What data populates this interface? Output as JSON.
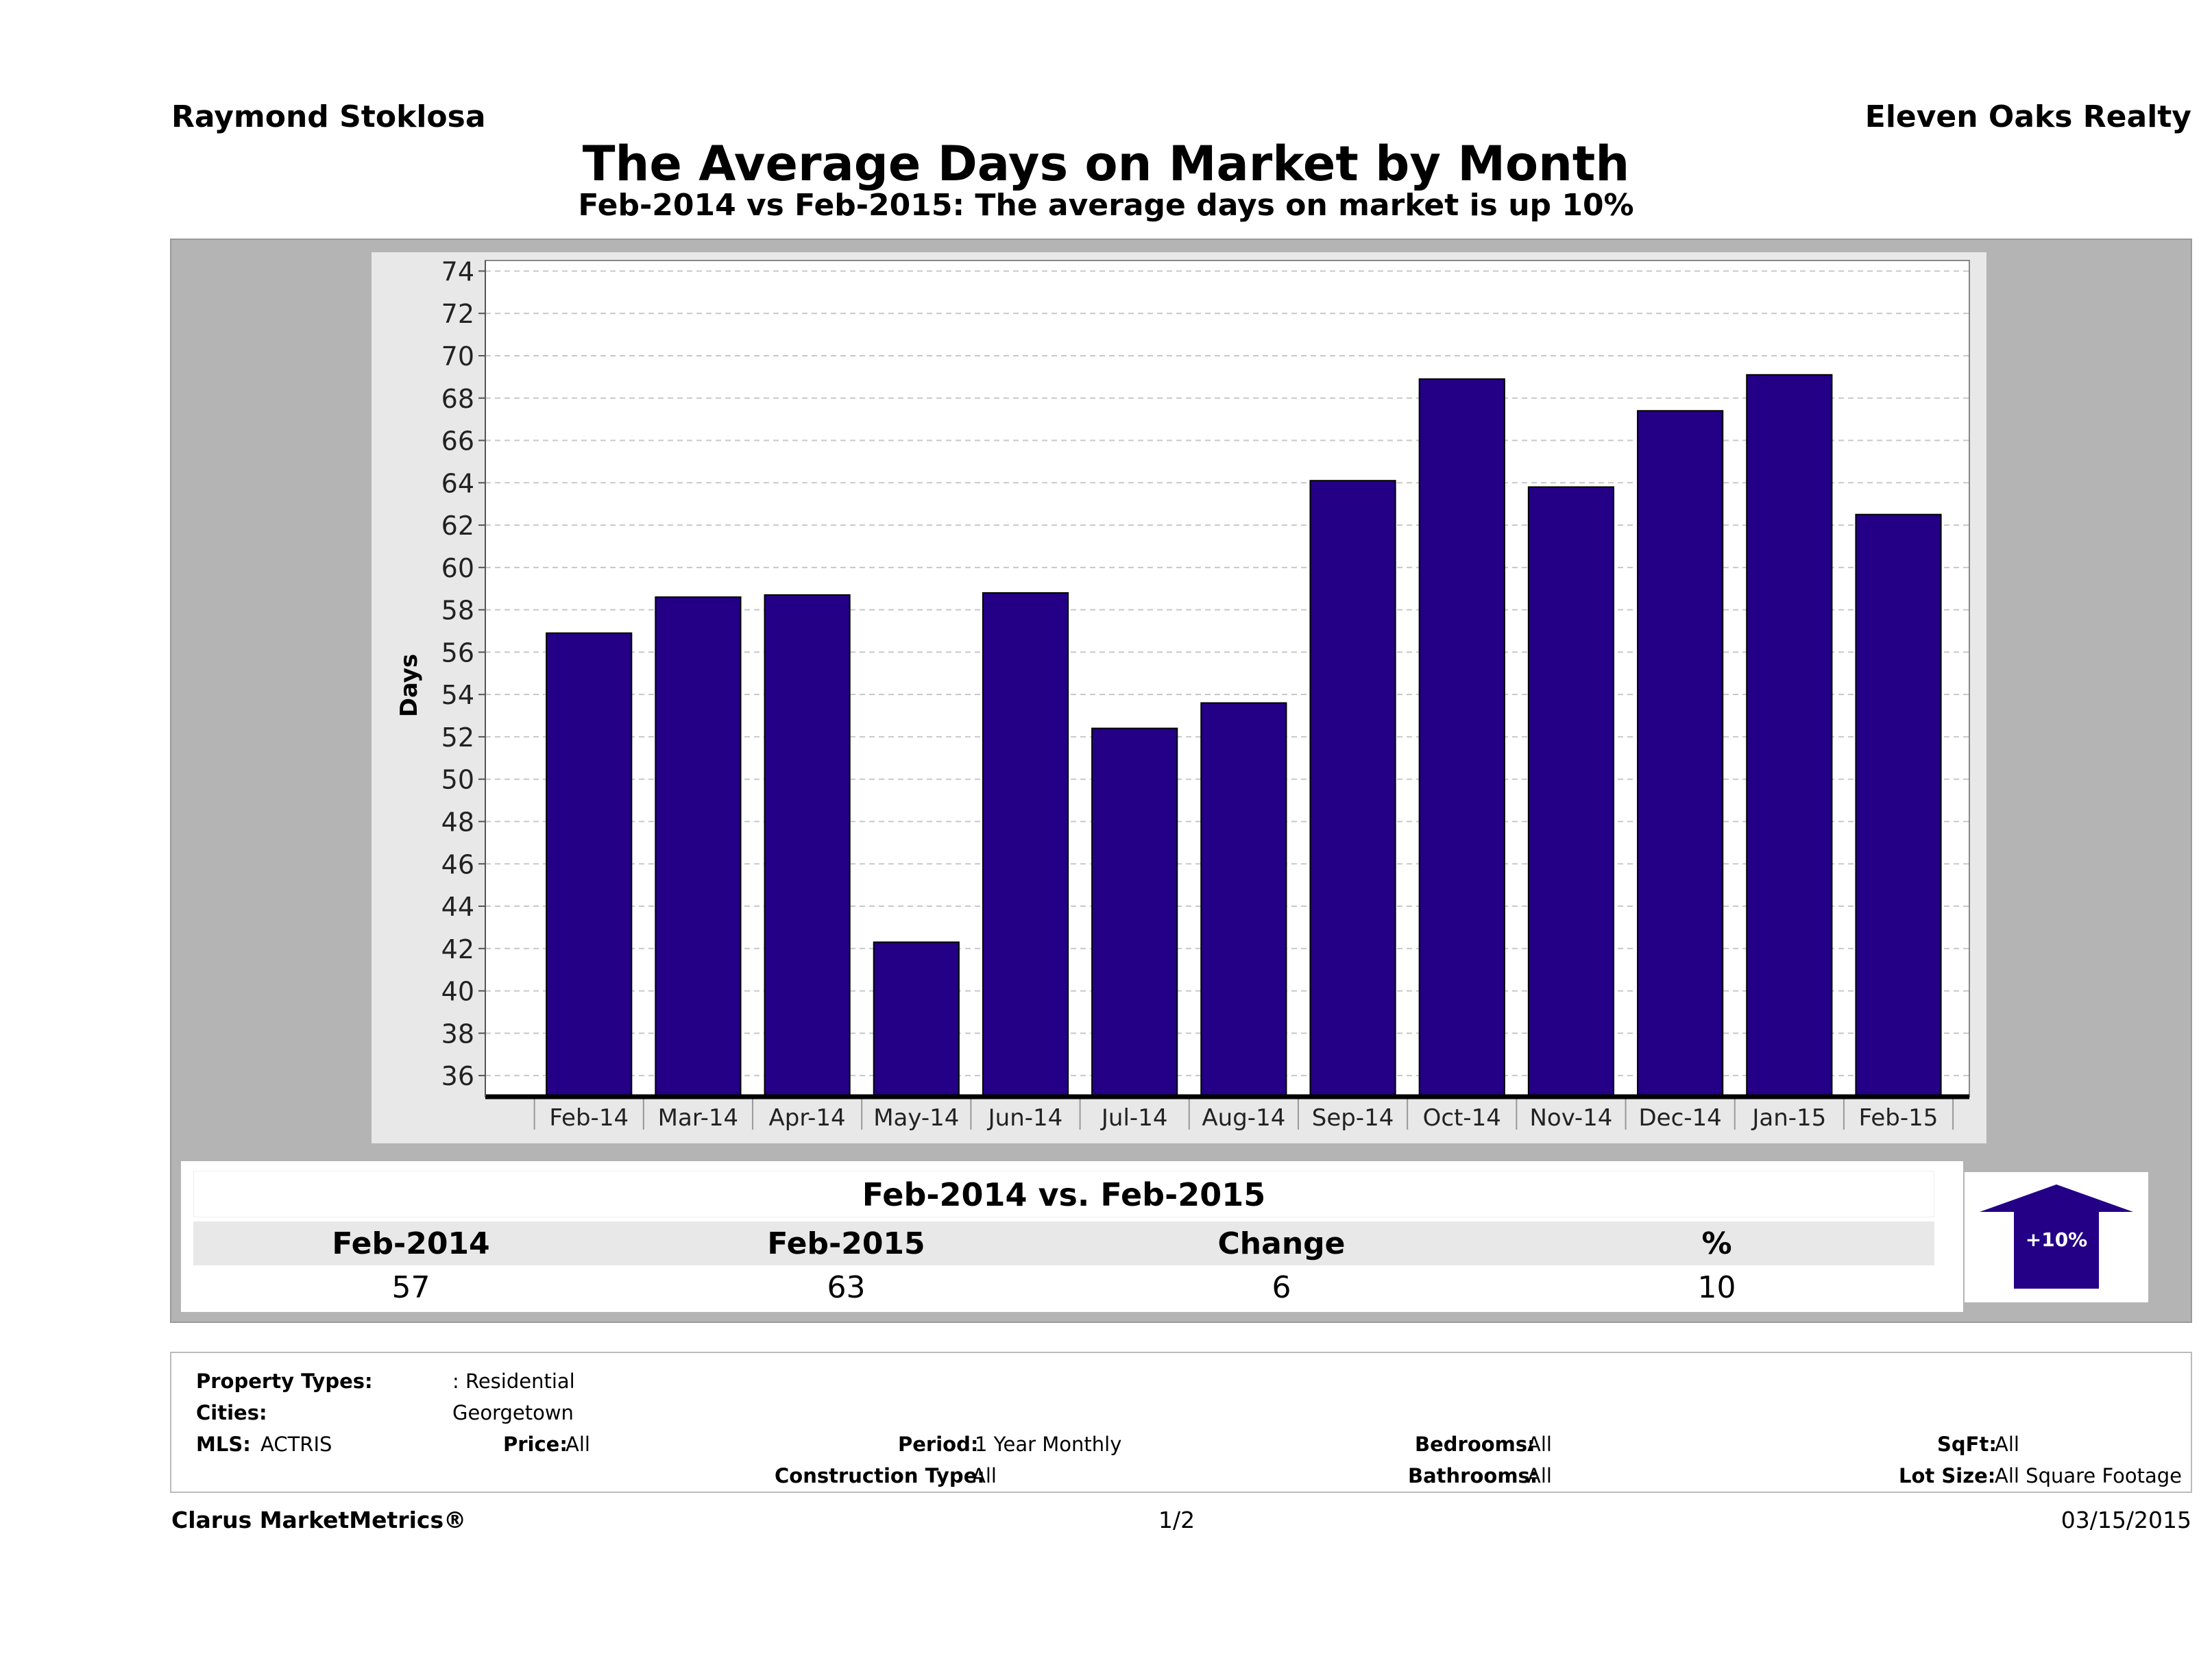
{
  "header": {
    "agent": "Raymond Stoklosa",
    "company": "Eleven Oaks Realty",
    "title": "The Average Days on Market by Month",
    "subtitle": "Feb-2014 vs Feb-2015: The average days on market is up 10%"
  },
  "chart_data": {
    "type": "bar",
    "ylabel": "Days",
    "xlabel": "",
    "ylim": [
      35,
      74.5
    ],
    "yticks": [
      36,
      38,
      40,
      42,
      44,
      46,
      48,
      50,
      52,
      54,
      56,
      58,
      60,
      62,
      64,
      66,
      68,
      70,
      72,
      74
    ],
    "grid": true,
    "categories": [
      "Feb-14",
      "Mar-14",
      "Apr-14",
      "May-14",
      "Jun-14",
      "Jul-14",
      "Aug-14",
      "Sep-14",
      "Oct-14",
      "Nov-14",
      "Dec-14",
      "Jan-15",
      "Feb-15"
    ],
    "values": [
      56.9,
      58.6,
      58.7,
      42.3,
      58.8,
      52.4,
      53.6,
      64.1,
      68.9,
      63.8,
      67.4,
      69.1,
      62.5
    ],
    "bar_color": "#230085"
  },
  "stats": {
    "heading": "Feb-2014 vs. Feb-2015",
    "columns": [
      "Feb-2014",
      "Feb-2015",
      "Change",
      "%"
    ],
    "values": [
      "57",
      "63",
      "6",
      "10"
    ],
    "badge": "+10%",
    "badge_color": "#230085"
  },
  "filters": {
    "property_types_label": "Property Types:",
    "property_types_value": ": Residential",
    "cities_label": "Cities:",
    "cities_value": "Georgetown",
    "mls_label": "MLS:",
    "mls_value": "ACTRIS",
    "price_label": "Price:",
    "price_value": "All",
    "period_label": "Period:",
    "period_value": "1 Year Monthly",
    "construction_label": "Construction Type:",
    "construction_value": "All",
    "bedrooms_label": "Bedrooms:",
    "bedrooms_value": "All",
    "bathrooms_label": "Bathrooms:",
    "bathrooms_value": "All",
    "sqft_label": "SqFt:",
    "sqft_value": "All",
    "lotsize_label": "Lot Size:",
    "lotsize_value": "All Square Footage"
  },
  "footer": {
    "brand": "Clarus MarketMetrics®",
    "page": "1/2",
    "date": "03/15/2015"
  }
}
